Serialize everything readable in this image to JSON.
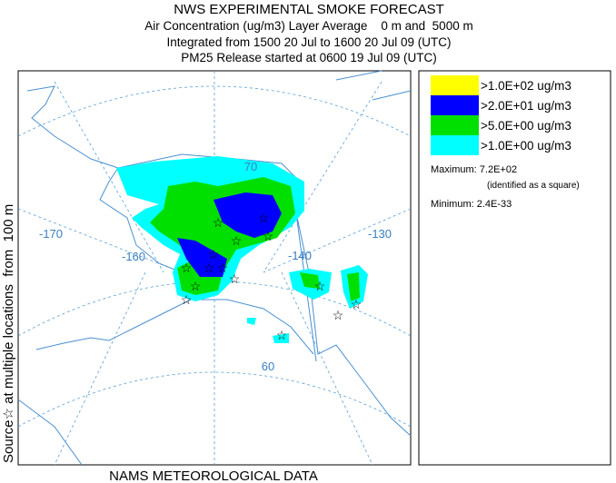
{
  "header": {
    "title": "NWS EXPERIMENTAL SMOKE FORECAST",
    "lines": [
      "Air Concentration (ug/m3) Layer Average    0 m and  5000 m",
      "Integrated from 1500 20 Jul to 1600 20 Jul 09 (UTC)",
      "PM25 Release started at 0600 19 Jul 09 (UTC)"
    ]
  },
  "side_label": "Source☆ at multiple locations  from  100 m",
  "footer": "NAMS METEOROLOGICAL DATA",
  "map": {
    "graticule_labels": [
      "-170",
      "-160",
      "-140",
      "-130",
      "70",
      "60"
    ]
  },
  "legend": {
    "entries": [
      {
        "label": ">1.0E+02 ug/m3",
        "color": "#ffff00"
      },
      {
        "label": ">2.0E+01 ug/m3",
        "color": "#0000ff"
      },
      {
        "label": ">5.0E+00 ug/m3",
        "color": "#00e000"
      },
      {
        "label": ">1.0E+00 ug/m3",
        "color": "#00ffff"
      }
    ],
    "maximum": "Maximum: 7.2E+02",
    "maximum_note": "(identified as a square)",
    "minimum": "Minimum: 2.4E-33"
  }
}
